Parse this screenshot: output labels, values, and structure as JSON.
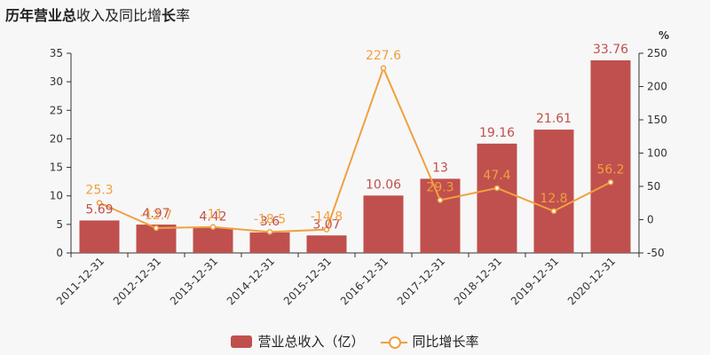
{
  "title": {
    "part1": "历年",
    "part2": "营业总",
    "part3": "收入及同比增",
    "part4": "长",
    "part5": "率"
  },
  "legend": {
    "bar_label": "营业总收入（亿）",
    "line_label": "同比增长率"
  },
  "colors": {
    "bar": "#c0504d",
    "line": "#f0a040",
    "bar_label": "#c0504d",
    "line_label": "#f0a040",
    "axis": "#333333",
    "background": "#f7f7f7"
  },
  "chart_data": {
    "type": "bar",
    "categories": [
      "2011-12-31",
      "2012-12-31",
      "2013-12-31",
      "2014-12-31",
      "2015-12-31",
      "2016-12-31",
      "2017-12-31",
      "2018-12-31",
      "2019-12-31",
      "2020-12-31"
    ],
    "series": [
      {
        "type": "bar",
        "axis": "left",
        "values": [
          5.69,
          4.97,
          4.42,
          3.6,
          3.07,
          10.06,
          13,
          19.16,
          21.61,
          33.76
        ],
        "labels": [
          "5.69",
          "4.97",
          "4.42",
          "3.6",
          "3.07",
          "10.06",
          "13",
          "19.16",
          "21.61",
          "33.76"
        ]
      },
      {
        "type": "line",
        "axis": "right",
        "values": [
          25.3,
          -12.7,
          -11,
          -18.5,
          -14.8,
          227.6,
          29.3,
          47.4,
          12.8,
          56.2
        ],
        "labels": [
          "25.3",
          "-12.7",
          "-11",
          "-18.5",
          "-14.8",
          "227.6",
          "29.3",
          "47.4",
          "12.8",
          "56.2"
        ]
      }
    ],
    "y_left": {
      "ylim": [
        0,
        35
      ],
      "ticks": [
        "0",
        "5",
        "10",
        "15",
        "20",
        "25",
        "30",
        "35"
      ]
    },
    "y_right": {
      "ylim": [
        -50,
        250
      ],
      "ticks": [
        "-50",
        "0",
        "50",
        "100",
        "150",
        "200",
        "250"
      ],
      "unit": "%"
    },
    "grid": false,
    "legend_position": "bottom"
  }
}
